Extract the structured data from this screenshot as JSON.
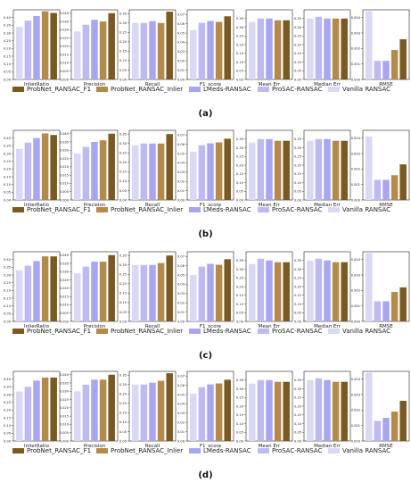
{
  "figure": {
    "legend_placement": "below-each-row",
    "colors": {
      "ProbNet_RANSAC_F1": "#7b5a22",
      "ProbNet_RANSAC_Inlier": "#b48a4a",
      "LMeds-RANSAC": "#a9a6ef",
      "ProSAC-RANSAC": "#bcbaf1",
      "Vanilla RANSAC": "#d9d8f5"
    },
    "panel_background": "#ffffff"
  },
  "chart_data": [
    {
      "type": "bar",
      "caption": "(a)",
      "series": [
        {
          "name": "ProbNet_RANSAC_F1"
        },
        {
          "name": "ProbNet_RANSAC_Inlier"
        },
        {
          "name": "LMeds-RANSAC"
        },
        {
          "name": "ProSAC-RANSAC"
        },
        {
          "name": "Vanilla RANSAC"
        }
      ],
      "subplots": [
        {
          "xlabel": "InlierRatio",
          "ylim": [
            0,
            0.45
          ],
          "ticks": [
            "0.00",
            "0.05",
            "0.10",
            "0.15",
            "0.20",
            "0.25",
            "0.30",
            "0.35",
            "0.40"
          ],
          "values": [
            0.43,
            0.44,
            0.41,
            0.38,
            0.34
          ]
        },
        {
          "xlabel": "Precision",
          "ylim": [
            0,
            0.042
          ],
          "ticks": [
            "0.000",
            "0.005",
            "0.010",
            "0.015",
            "0.020",
            "0.025",
            "0.030",
            "0.035",
            "0.040"
          ],
          "values": [
            0.04,
            0.035,
            0.036,
            0.033,
            0.029
          ]
        },
        {
          "xlabel": "Recall",
          "ylim": [
            0,
            0.37
          ],
          "ticks": [
            "0.00",
            "0.05",
            "0.10",
            "0.15",
            "0.20",
            "0.25",
            "0.30",
            "0.35"
          ],
          "values": [
            0.36,
            0.3,
            0.31,
            0.3,
            0.3
          ]
        },
        {
          "xlabel": "F1_score",
          "ylim": [
            0,
            0.075
          ],
          "ticks": [
            "0.00",
            "0.01",
            "0.02",
            "0.03",
            "0.04",
            "0.05",
            "0.06",
            "0.07"
          ],
          "values": [
            0.068,
            0.062,
            0.063,
            0.061,
            0.053
          ]
        },
        {
          "xlabel": "Mean Err",
          "ylim": [
            0,
            0.4
          ],
          "ticks": [
            "0.00",
            "0.05",
            "0.10",
            "0.15",
            "0.20",
            "0.25",
            "0.30",
            "0.35"
          ],
          "values": [
            0.34,
            0.34,
            0.35,
            0.35,
            0.33
          ]
        },
        {
          "xlabel": "Median Err",
          "ylim": [
            0,
            0.4
          ],
          "ticks": [
            "0.00",
            "0.05",
            "0.10",
            "0.15",
            "0.20",
            "0.25",
            "0.30",
            "0.35"
          ],
          "values": [
            0.35,
            0.35,
            0.35,
            0.36,
            0.35
          ]
        },
        {
          "xlabel": "RMSE",
          "ylim": [
            0,
            0.0045
          ],
          "ticks": [
            "0.000",
            "0.001",
            "0.002",
            "0.003",
            "0.004"
          ],
          "values": [
            0.0026,
            0.0019,
            0.0012,
            0.0012,
            0.0044
          ]
        }
      ]
    },
    {
      "type": "bar",
      "caption": "(b)",
      "series": [
        {
          "name": "ProbNet_RANSAC_F1"
        },
        {
          "name": "ProbNet_RANSAC_Inlier"
        },
        {
          "name": "LMeds-RANSAC"
        },
        {
          "name": "ProSAC-RANSAC"
        },
        {
          "name": "Vanilla RANSAC"
        }
      ],
      "subplots": [
        {
          "xlabel": "InlierRatio",
          "ylim": [
            0,
            0.45
          ],
          "ticks": [
            "0.00",
            "0.05",
            "0.10",
            "0.15",
            "0.20",
            "0.25",
            "0.30",
            "0.35",
            "0.40"
          ],
          "values": [
            0.42,
            0.43,
            0.4,
            0.37,
            0.33
          ]
        },
        {
          "xlabel": "Precision",
          "ylim": [
            0,
            0.042
          ],
          "ticks": [
            "0.000",
            "0.005",
            "0.010",
            "0.015",
            "0.020",
            "0.025",
            "0.030",
            "0.035",
            "0.040"
          ],
          "values": [
            0.04,
            0.036,
            0.035,
            0.032,
            0.028
          ]
        },
        {
          "xlabel": "Recall",
          "ylim": [
            0,
            0.37
          ],
          "ticks": [
            "0.00",
            "0.05",
            "0.10",
            "0.15",
            "0.20",
            "0.25",
            "0.30",
            "0.35"
          ],
          "values": [
            0.35,
            0.3,
            0.3,
            0.3,
            0.29
          ]
        },
        {
          "xlabel": "F1_score",
          "ylim": [
            0,
            0.075
          ],
          "ticks": [
            "0.00",
            "0.01",
            "0.02",
            "0.03",
            "0.04",
            "0.05",
            "0.06",
            "0.07"
          ],
          "values": [
            0.066,
            0.062,
            0.061,
            0.059,
            0.052
          ]
        },
        {
          "xlabel": "Mean Err",
          "ylim": [
            0,
            0.4
          ],
          "ticks": [
            "0.00",
            "0.05",
            "0.10",
            "0.15",
            "0.20",
            "0.25",
            "0.30",
            "0.35"
          ],
          "values": [
            0.34,
            0.34,
            0.35,
            0.35,
            0.33
          ]
        },
        {
          "xlabel": "Median Err",
          "ylim": [
            0,
            0.4
          ],
          "ticks": [
            "0.00",
            "0.05",
            "0.10",
            "0.15",
            "0.20",
            "0.25",
            "0.30",
            "0.35"
          ],
          "values": [
            0.34,
            0.34,
            0.35,
            0.35,
            0.34
          ]
        },
        {
          "xlabel": "RMSE",
          "ylim": [
            0,
            0.0045
          ],
          "ticks": [
            "0.000",
            "0.001",
            "0.002",
            "0.003",
            "0.004"
          ],
          "values": [
            0.0023,
            0.0016,
            0.0013,
            0.0013,
            0.0041
          ]
        }
      ]
    },
    {
      "type": "bar",
      "caption": "(c)",
      "series": [
        {
          "name": "ProbNet_RANSAC_F1"
        },
        {
          "name": "ProbNet_RANSAC_Inlier"
        },
        {
          "name": "LMeds-RANSAC"
        },
        {
          "name": "ProSAC-RANSAC"
        },
        {
          "name": "Vanilla RANSAC"
        }
      ],
      "subplots": [
        {
          "xlabel": "InlierRatio",
          "ylim": [
            0,
            0.45
          ],
          "ticks": [
            "0.00",
            "0.05",
            "0.10",
            "0.15",
            "0.20",
            "0.25",
            "0.30",
            "0.35",
            "0.40"
          ],
          "values": [
            0.42,
            0.42,
            0.39,
            0.36,
            0.33
          ]
        },
        {
          "xlabel": "Precision",
          "ylim": [
            0,
            0.042
          ],
          "ticks": [
            "0.000",
            "0.005",
            "0.010",
            "0.015",
            "0.020",
            "0.025",
            "0.030",
            "0.035",
            "0.040"
          ],
          "values": [
            0.04,
            0.036,
            0.036,
            0.033,
            0.029
          ]
        },
        {
          "xlabel": "Recall",
          "ylim": [
            0,
            0.37
          ],
          "ticks": [
            "0.00",
            "0.05",
            "0.10",
            "0.15",
            "0.20",
            "0.25",
            "0.30",
            "0.35"
          ],
          "values": [
            0.35,
            0.31,
            0.3,
            0.3,
            0.3
          ]
        },
        {
          "xlabel": "F1_score",
          "ylim": [
            0,
            0.075
          ],
          "ticks": [
            "0.00",
            "0.01",
            "0.02",
            "0.03",
            "0.04",
            "0.05",
            "0.06",
            "0.07"
          ],
          "values": [
            0.067,
            0.061,
            0.062,
            0.059,
            0.05
          ]
        },
        {
          "xlabel": "Mean Err",
          "ylim": [
            0,
            0.4
          ],
          "ticks": [
            "0.00",
            "0.05",
            "0.10",
            "0.15",
            "0.20",
            "0.25",
            "0.30",
            "0.35"
          ],
          "values": [
            0.34,
            0.34,
            0.35,
            0.36,
            0.33
          ]
        },
        {
          "xlabel": "Median Err",
          "ylim": [
            0,
            0.4
          ],
          "ticks": [
            "0.00",
            "0.05",
            "0.10",
            "0.15",
            "0.20",
            "0.25",
            "0.30",
            "0.35"
          ],
          "values": [
            0.34,
            0.34,
            0.35,
            0.36,
            0.35
          ]
        },
        {
          "xlabel": "RMSE",
          "ylim": [
            0,
            0.0045
          ],
          "ticks": [
            "0.000",
            "0.001",
            "0.002",
            "0.003",
            "0.004"
          ],
          "values": [
            0.0022,
            0.0019,
            0.0013,
            0.0013,
            0.0044
          ]
        }
      ]
    },
    {
      "type": "bar",
      "caption": "(d)",
      "series": [
        {
          "name": "ProbNet_RANSAC_F1"
        },
        {
          "name": "ProbNet_RANSAC_Inlier"
        },
        {
          "name": "LMeds-RANSAC"
        },
        {
          "name": "ProSAC-RANSAC"
        },
        {
          "name": "Vanilla RANSAC"
        }
      ],
      "subplots": [
        {
          "xlabel": "InlierRatio",
          "ylim": [
            0,
            0.45
          ],
          "ticks": [
            "0.00",
            "0.05",
            "0.10",
            "0.15",
            "0.20",
            "0.25",
            "0.30",
            "0.35",
            "0.40"
          ],
          "values": [
            0.41,
            0.41,
            0.39,
            0.35,
            0.32
          ]
        },
        {
          "xlabel": "Precision",
          "ylim": [
            0,
            0.042
          ],
          "ticks": [
            "0.000",
            "0.005",
            "0.010",
            "0.015",
            "0.020",
            "0.025",
            "0.030",
            "0.035",
            "0.040"
          ],
          "values": [
            0.04,
            0.037,
            0.037,
            0.034,
            0.03
          ]
        },
        {
          "xlabel": "Recall",
          "ylim": [
            0,
            0.37
          ],
          "ticks": [
            "0.00",
            "0.05",
            "0.10",
            "0.15",
            "0.20",
            "0.25",
            "0.30",
            "0.35"
          ],
          "values": [
            0.36,
            0.32,
            0.31,
            0.3,
            0.3
          ]
        },
        {
          "xlabel": "F1_score",
          "ylim": [
            0,
            0.075
          ],
          "ticks": [
            "0.00",
            "0.01",
            "0.02",
            "0.03",
            "0.04",
            "0.05",
            "0.06",
            "0.07"
          ],
          "values": [
            0.066,
            0.062,
            0.061,
            0.058,
            0.051
          ]
        },
        {
          "xlabel": "Mean Err",
          "ylim": [
            0,
            0.4
          ],
          "ticks": [
            "0.00",
            "0.05",
            "0.10",
            "0.15",
            "0.20",
            "0.25",
            "0.30",
            "0.35"
          ],
          "values": [
            0.34,
            0.34,
            0.35,
            0.35,
            0.33
          ]
        },
        {
          "xlabel": "Median Err",
          "ylim": [
            0,
            0.4
          ],
          "ticks": [
            "0.00",
            "0.05",
            "0.10",
            "0.15",
            "0.20",
            "0.25",
            "0.30",
            "0.35"
          ],
          "values": [
            0.34,
            0.34,
            0.35,
            0.36,
            0.35
          ]
        },
        {
          "xlabel": "RMSE",
          "ylim": [
            0,
            0.0045
          ],
          "ticks": [
            "0.000",
            "0.001",
            "0.002",
            "0.003",
            "0.004"
          ],
          "values": [
            0.0026,
            0.0019,
            0.0015,
            0.0013,
            0.0044
          ]
        }
      ]
    }
  ]
}
